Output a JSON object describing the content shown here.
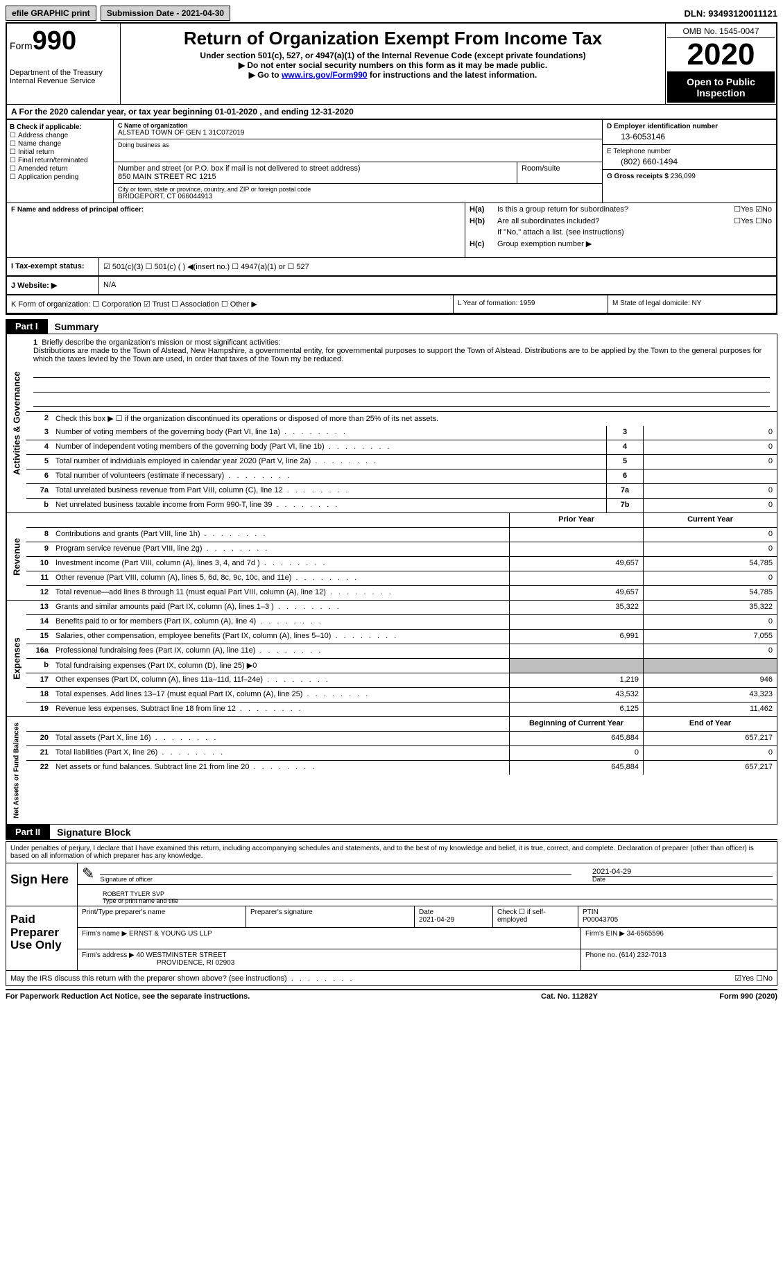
{
  "topbar": {
    "efile_label": "efile GRAPHIC print",
    "submission_label": "Submission Date - 2021-04-30",
    "dln_label": "DLN: 93493120011121"
  },
  "header": {
    "form_label": "Form",
    "form_number": "990",
    "dept": "Department of the Treasury",
    "irs": "Internal Revenue Service",
    "title": "Return of Organization Exempt From Income Tax",
    "subtitle": "Under section 501(c), 527, or 4947(a)(1) of the Internal Revenue Code (except private foundations)",
    "note1": "▶ Do not enter social security numbers on this form as it may be made public.",
    "note2_pre": "▶ Go to ",
    "note2_link": "www.irs.gov/Form990",
    "note2_post": " for instructions and the latest information.",
    "omb": "OMB No. 1545-0047",
    "year": "2020",
    "open": "Open to Public Inspection"
  },
  "period": "A For the 2020 calendar year, or tax year beginning 01-01-2020   , and ending 12-31-2020",
  "box_b": {
    "title": "B Check if applicable:",
    "items": [
      "Address change",
      "Name change",
      "Initial return",
      "Final return/terminated",
      "Amended return",
      "Application pending"
    ]
  },
  "box_c": {
    "name_lbl": "C Name of organization",
    "name": "ALSTEAD TOWN OF GEN 1 31C072019",
    "dba_lbl": "Doing business as",
    "street_lbl": "Number and street (or P.O. box if mail is not delivered to street address)",
    "room_lbl": "Room/suite",
    "street": "850 MAIN STREET RC 1215",
    "city_lbl": "City or town, state or province, country, and ZIP or foreign postal code",
    "city": "BRIDGEPORT, CT  066044913"
  },
  "box_d": {
    "lbl": "D Employer identification number",
    "val": "13-6053146"
  },
  "box_e": {
    "lbl": "E Telephone number",
    "val": "(802) 660-1494"
  },
  "box_g": {
    "lbl": "G Gross receipts $",
    "val": "236,099"
  },
  "box_f": "F Name and address of principal officer:",
  "box_h": {
    "a_lbl": "H(a)",
    "a_txt": "Is this a group return for subordinates?",
    "a_yn": "☐Yes ☑No",
    "b_lbl": "H(b)",
    "b_txt": "Are all subordinates included?",
    "b_yn": "☐Yes ☐No",
    "b_note": "If \"No,\" attach a list. (see instructions)",
    "c_lbl": "H(c)",
    "c_txt": "Group exemption number ▶"
  },
  "box_i": {
    "lbl": "I    Tax-exempt status:",
    "opts": "☑ 501(c)(3)    ☐ 501(c) (  ) ◀(insert no.)    ☐ 4947(a)(1) or    ☐ 527"
  },
  "box_j": {
    "lbl": "J   Website: ▶",
    "val": "N/A"
  },
  "box_k": {
    "lbl": "K Form of organization:  ☐ Corporation  ☑ Trust  ☐ Association  ☐ Other ▶",
    "l": "L Year of formation: 1959",
    "m": "M State of legal domicile: NY"
  },
  "part1": {
    "tab": "Part I",
    "title": "Summary"
  },
  "mission": {
    "num": "1",
    "lbl": "Briefly describe the organization's mission or most significant activities:",
    "text": "Distributions are made to the Town of Alstead, New Hampshire, a governmental entity, for governmental purposes to support the Town of Alstead. Distributions are to be applied by the Town to the general purposes for which the taxes levied by the Town are used, in order that taxes of the Town my be reduced."
  },
  "governance": {
    "side": "Activities & Governance",
    "lines": [
      {
        "n": "2",
        "d": "Check this box ▶ ☐  if the organization discontinued its operations or disposed of more than 25% of its net assets."
      },
      {
        "n": "3",
        "d": "Number of voting members of the governing body (Part VI, line 1a)",
        "c": "3",
        "v": "0"
      },
      {
        "n": "4",
        "d": "Number of independent voting members of the governing body (Part VI, line 1b)",
        "c": "4",
        "v": "0"
      },
      {
        "n": "5",
        "d": "Total number of individuals employed in calendar year 2020 (Part V, line 2a)",
        "c": "5",
        "v": "0"
      },
      {
        "n": "6",
        "d": "Total number of volunteers (estimate if necessary)",
        "c": "6",
        "v": ""
      },
      {
        "n": "7a",
        "d": "Total unrelated business revenue from Part VIII, column (C), line 12",
        "c": "7a",
        "v": "0"
      },
      {
        "n": "b",
        "d": "Net unrelated business taxable income from Form 990-T, line 39",
        "c": "7b",
        "v": "0"
      }
    ]
  },
  "col_headers": {
    "prior": "Prior Year",
    "current": "Current Year"
  },
  "revenue": {
    "side": "Revenue",
    "lines": [
      {
        "n": "8",
        "d": "Contributions and grants (Part VIII, line 1h)",
        "p": "",
        "c": "0"
      },
      {
        "n": "9",
        "d": "Program service revenue (Part VIII, line 2g)",
        "p": "",
        "c": "0"
      },
      {
        "n": "10",
        "d": "Investment income (Part VIII, column (A), lines 3, 4, and 7d )",
        "p": "49,657",
        "c": "54,785"
      },
      {
        "n": "11",
        "d": "Other revenue (Part VIII, column (A), lines 5, 6d, 8c, 9c, 10c, and 11e)",
        "p": "",
        "c": "0"
      },
      {
        "n": "12",
        "d": "Total revenue—add lines 8 through 11 (must equal Part VIII, column (A), line 12)",
        "p": "49,657",
        "c": "54,785"
      }
    ]
  },
  "expenses": {
    "side": "Expenses",
    "lines": [
      {
        "n": "13",
        "d": "Grants and similar amounts paid (Part IX, column (A), lines 1–3 )",
        "p": "35,322",
        "c": "35,322"
      },
      {
        "n": "14",
        "d": "Benefits paid to or for members (Part IX, column (A), line 4)",
        "p": "",
        "c": "0"
      },
      {
        "n": "15",
        "d": "Salaries, other compensation, employee benefits (Part IX, column (A), lines 5–10)",
        "p": "6,991",
        "c": "7,055"
      },
      {
        "n": "16a",
        "d": "Professional fundraising fees (Part IX, column (A), line 11e)",
        "p": "",
        "c": "0"
      },
      {
        "n": "b",
        "d": "Total fundraising expenses (Part IX, column (D), line 25) ▶0",
        "shaded": true
      },
      {
        "n": "17",
        "d": "Other expenses (Part IX, column (A), lines 11a–11d, 11f–24e)",
        "p": "1,219",
        "c": "946"
      },
      {
        "n": "18",
        "d": "Total expenses. Add lines 13–17 (must equal Part IX, column (A), line 25)",
        "p": "43,532",
        "c": "43,323"
      },
      {
        "n": "19",
        "d": "Revenue less expenses. Subtract line 18 from line 12",
        "p": "6,125",
        "c": "11,462"
      }
    ]
  },
  "balance_headers": {
    "begin": "Beginning of Current Year",
    "end": "End of Year"
  },
  "netassets": {
    "side": "Net Assets or Fund Balances",
    "lines": [
      {
        "n": "20",
        "d": "Total assets (Part X, line 16)",
        "p": "645,884",
        "c": "657,217"
      },
      {
        "n": "21",
        "d": "Total liabilities (Part X, line 26)",
        "p": "0",
        "c": "0"
      },
      {
        "n": "22",
        "d": "Net assets or fund balances. Subtract line 21 from line 20",
        "p": "645,884",
        "c": "657,217"
      }
    ]
  },
  "part2": {
    "tab": "Part II",
    "title": "Signature Block"
  },
  "sig": {
    "intro": "Under penalties of perjury, I declare that I have examined this return, including accompanying schedules and statements, and to the best of my knowledge and belief, it is true, correct, and complete. Declaration of preparer (other than officer) is based on all information of which preparer has any knowledge.",
    "sign_here": "Sign Here",
    "sig_officer": "Signature of officer",
    "date_lbl": "Date",
    "date_val": "2021-04-29",
    "name": "ROBERT TYLER  SVP",
    "name_lbl": "Type or print name and title"
  },
  "prep": {
    "label": "Paid Preparer Use Only",
    "h_name": "Print/Type preparer's name",
    "h_sig": "Preparer's signature",
    "h_date": "Date",
    "date_val": "2021-04-29",
    "h_check": "Check ☐ if self-employed",
    "h_ptin": "PTIN",
    "ptin": "P00043705",
    "firm_name_lbl": "Firm's name    ▶",
    "firm_name": "ERNST & YOUNG US LLP",
    "firm_ein_lbl": "Firm's EIN ▶",
    "firm_ein": "34-6565596",
    "firm_addr_lbl": "Firm's address ▶",
    "firm_addr1": "40 WESTMINSTER STREET",
    "firm_addr2": "PROVIDENCE, RI  02903",
    "phone_lbl": "Phone no.",
    "phone": "(614) 232-7013"
  },
  "discuss": {
    "txt": "May the IRS discuss this return with the preparer shown above? (see instructions)",
    "yn": "☑Yes ☐No"
  },
  "footer": {
    "left": "For Paperwork Reduction Act Notice, see the separate instructions.",
    "mid": "Cat. No. 11282Y",
    "right": "Form 990 (2020)"
  }
}
